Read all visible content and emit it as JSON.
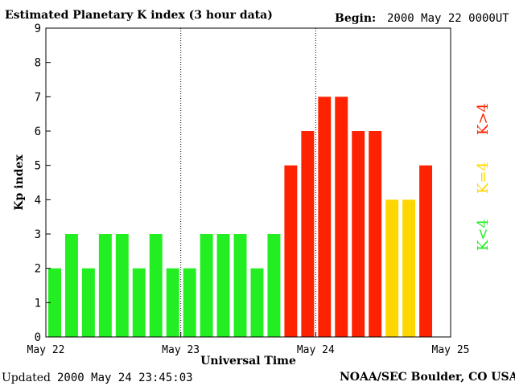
{
  "header": {
    "title": "Estimated Planetary K index (3 hour data)",
    "begin_label": "Begin:",
    "begin_value": "2000 May 22 0000UT"
  },
  "footer": {
    "updated_label": "Updated",
    "updated_value": "2000 May 24 23:45:03",
    "source": "NOAA/SEC Boulder, CO USA"
  },
  "legend": {
    "low": "K<4",
    "mid": "K=4",
    "high": "K>4"
  },
  "colors": {
    "low": "#22ee22",
    "mid": "#ffd700",
    "high": "#ff2200"
  },
  "chart_data": {
    "type": "bar",
    "title": "Estimated Planetary K index (3 hour data)",
    "xlabel": "Universal Time",
    "ylabel": "Kp index",
    "ylim": [
      0,
      9
    ],
    "yticks": [
      "0",
      "1",
      "2",
      "3",
      "4",
      "5",
      "6",
      "7",
      "8",
      "9"
    ],
    "xticks": [
      "May 22",
      "May 23",
      "May 24",
      "May 25"
    ],
    "day_separators": [
      "May 23",
      "May 24"
    ],
    "bars_per_day": 8,
    "series": [
      {
        "name": "Kp",
        "values": [
          2,
          3,
          2,
          3,
          3,
          2,
          3,
          2,
          2,
          3,
          3,
          3,
          2,
          3,
          5,
          6,
          7,
          7,
          6,
          6,
          4,
          4,
          5
        ]
      }
    ]
  }
}
